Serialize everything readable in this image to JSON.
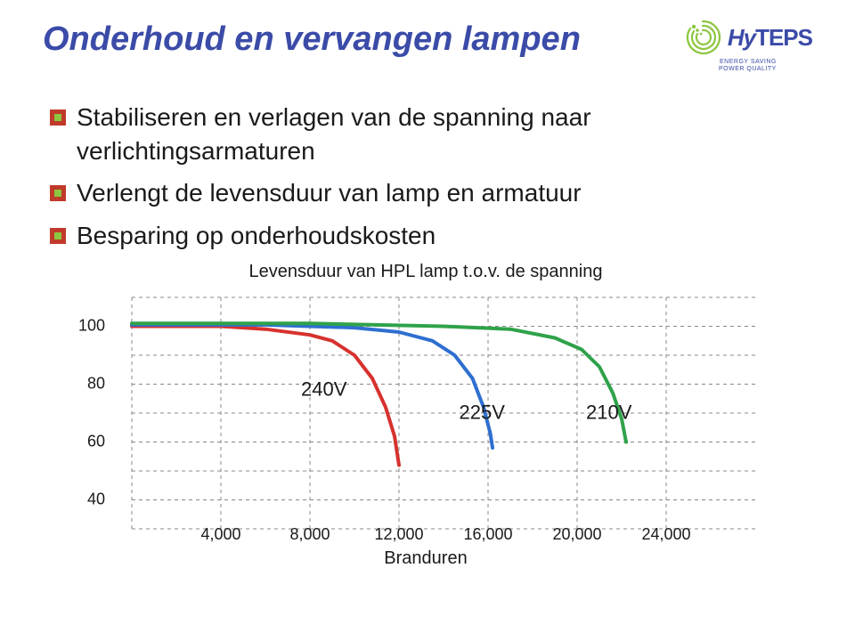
{
  "title": "Onderhoud en vervangen lampen",
  "logo": {
    "text_left": "Hy",
    "text_right": "TEPS",
    "sub1": "ENERGY SAVING",
    "sub2": "POWER QUALITY",
    "swirl_color": "#8cc63f",
    "text_color": "#3b4ba8"
  },
  "bullets": [
    "Stabiliseren en verlagen van de spanning naar verlichtingsarmaturen",
    "Verlengt de levensduur van lamp en armatuur",
    "Besparing op onderhoudskosten"
  ],
  "bullet_icon": {
    "outer": "#c03a2b",
    "inner": "#8cc63f"
  },
  "chart": {
    "type": "line",
    "title": "Levensduur van HPL lamp t.o.v. de spanning",
    "x_label": "Branduren",
    "x_ticks": [
      "4,000",
      "8,000",
      "12,000",
      "16,000",
      "20,000",
      "24,000"
    ],
    "x_domain": [
      0,
      28000
    ],
    "y_ticks": [
      40,
      60,
      80,
      100
    ],
    "y_domain": [
      30,
      110
    ],
    "grid_color": "#888888",
    "grid_dash": "4,4",
    "background_color": "#ffffff",
    "line_width": 4,
    "series": [
      {
        "name": "240V",
        "label": "240V",
        "color": "#d7322e",
        "label_pos": [
          7600,
          76
        ],
        "points": [
          [
            0,
            100
          ],
          [
            4000,
            100
          ],
          [
            6000,
            99
          ],
          [
            8000,
            97
          ],
          [
            9000,
            95
          ],
          [
            10000,
            90
          ],
          [
            10800,
            82
          ],
          [
            11400,
            72
          ],
          [
            11800,
            62
          ],
          [
            12000,
            52
          ]
        ]
      },
      {
        "name": "225V",
        "label": "225V",
        "color": "#2e6fd0",
        "label_pos": [
          14700,
          68
        ],
        "points": [
          [
            0,
            100.5
          ],
          [
            6000,
            100.5
          ],
          [
            10000,
            99.5
          ],
          [
            12000,
            98
          ],
          [
            13500,
            95
          ],
          [
            14500,
            90
          ],
          [
            15300,
            82
          ],
          [
            15800,
            72
          ],
          [
            16100,
            63
          ],
          [
            16200,
            58
          ]
        ]
      },
      {
        "name": "210V",
        "label": "210V",
        "color": "#2fa24a",
        "label_pos": [
          20400,
          68
        ],
        "points": [
          [
            0,
            101
          ],
          [
            8000,
            101
          ],
          [
            14000,
            100
          ],
          [
            17000,
            99
          ],
          [
            19000,
            96
          ],
          [
            20200,
            92
          ],
          [
            21000,
            86
          ],
          [
            21600,
            77
          ],
          [
            22000,
            68
          ],
          [
            22200,
            60
          ]
        ]
      }
    ]
  },
  "fontsizes": {
    "title": 38,
    "bullet": 28,
    "chart_title": 20,
    "tick": 18,
    "axis_label": 20,
    "series_label": 22
  },
  "colors": {
    "title": "#3b4ba8",
    "text": "#1a1a1a",
    "background": "#ffffff"
  }
}
